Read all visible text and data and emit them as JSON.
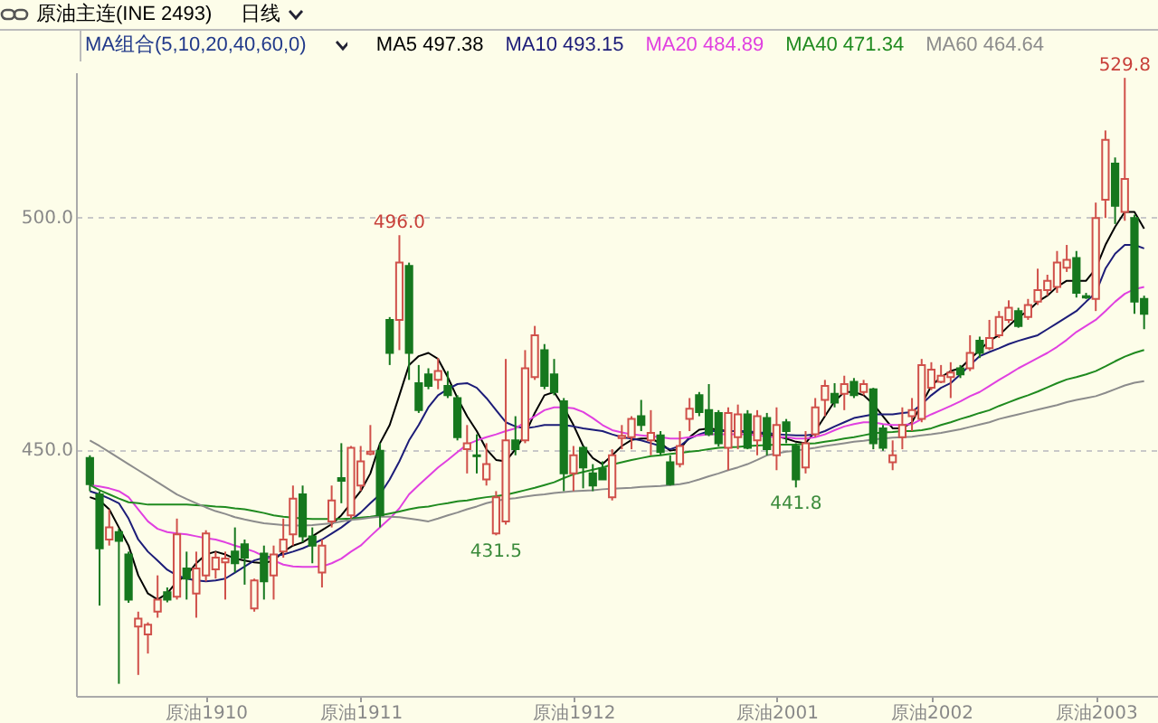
{
  "chart_data": {
    "type": "candlestick",
    "title": "原油主连(INE 2493)",
    "subtitle": "日线",
    "legend_title": "MA组合(5,10,20,40,60,0)",
    "legend": "top right",
    "grid": "y",
    "ylim": [
      397,
      531
    ],
    "yticks": [
      {
        "value": 450,
        "label": "450.0"
      },
      {
        "value": 500,
        "label": "500.0"
      }
    ],
    "categories": [
      null,
      null,
      null,
      null,
      null,
      null,
      null,
      null,
      null,
      null,
      null,
      null,
      "原油1910",
      null,
      null,
      null,
      null,
      null,
      null,
      null,
      null,
      null,
      null,
      null,
      null,
      null,
      null,
      null,
      "原油1911",
      null,
      null,
      null,
      null,
      null,
      null,
      null,
      null,
      null,
      null,
      null,
      null,
      null,
      null,
      null,
      null,
      null,
      null,
      null,
      null,
      null,
      "原油1912",
      null,
      null,
      null,
      null,
      null,
      null,
      null,
      null,
      null,
      null,
      null,
      null,
      null,
      null,
      null,
      null,
      null,
      null,
      null,
      null,
      "原油2001",
      null,
      null,
      null,
      null,
      null,
      null,
      null,
      null,
      null,
      null,
      null,
      null,
      null,
      null,
      null,
      "原油2002",
      null,
      null,
      null,
      null,
      null,
      null,
      null,
      null,
      null,
      null,
      null,
      null,
      null,
      null,
      null,
      null,
      "原油2003",
      null,
      null,
      null,
      null,
      null
    ],
    "ohlc": [
      [
        448.1,
        448.7,
        441,
        442.5
      ],
      [
        440.3,
        441,
        416.4,
        428.7
      ],
      [
        430.6,
        437.1,
        429.3,
        433.2
      ],
      [
        432.2,
        433,
        399.6,
        430.3
      ],
      [
        427.4,
        428,
        417,
        417.7
      ],
      [
        411.9,
        415.1,
        401.5,
        413.6
      ],
      [
        410.2,
        412.8,
        406.1,
        412.3
      ],
      [
        415.1,
        422.9,
        413.8,
        417.7
      ],
      [
        419.3,
        420.3,
        417.1,
        417.7
      ],
      [
        418.3,
        435.1,
        417.7,
        431.7
      ],
      [
        424.4,
        428,
        417.7,
        422.2
      ],
      [
        419,
        428,
        413.8,
        424.4
      ],
      [
        422.9,
        432.6,
        421.6,
        431.9
      ],
      [
        424.2,
        428,
        422.2,
        426.7
      ],
      [
        425.7,
        428,
        417.7,
        426.5
      ],
      [
        428,
        433.2,
        423.5,
        425.5
      ],
      [
        429.6,
        430.6,
        420.9,
        426.7
      ],
      [
        415.8,
        422.2,
        415.1,
        421.8
      ],
      [
        427.6,
        429.3,
        417.7,
        421.6
      ],
      [
        422.9,
        429.3,
        417.7,
        427.4
      ],
      [
        428,
        435.1,
        426.7,
        430.6
      ],
      [
        431.7,
        442.2,
        429.3,
        439.4
      ],
      [
        440.3,
        442.2,
        430,
        431.3
      ],
      [
        431.3,
        433.2,
        425.5,
        429.3
      ],
      [
        423.5,
        430.6,
        420.3,
        429.3
      ],
      [
        434.5,
        442.2,
        433.2,
        439
      ],
      [
        443.8,
        451.3,
        438.4,
        443.2
      ],
      [
        435.8,
        450.7,
        435.1,
        450.3
      ],
      [
        442.2,
        450.7,
        441,
        447.4
      ],
      [
        449,
        455.2,
        448.7,
        449.5
      ],
      [
        449.7,
        451.3,
        433.2,
        435.8
      ],
      [
        477.8,
        478.4,
        468.1,
        470.7
      ],
      [
        477.8,
        496,
        471.3,
        490.1
      ],
      [
        489.4,
        490.1,
        464.9,
        470.7
      ],
      [
        464.2,
        468.1,
        457.8,
        458.4
      ],
      [
        466.1,
        467.4,
        462.9,
        463.6
      ],
      [
        464.9,
        469.6,
        462.9,
        466.8
      ],
      [
        463.6,
        466.8,
        461,
        461.6
      ],
      [
        461,
        461.6,
        451.9,
        452.6
      ],
      [
        450,
        455.2,
        444.8,
        451.3
      ],
      [
        448.7,
        453.2,
        444.8,
        448.5
      ],
      [
        443.5,
        451.3,
        442.2,
        446.8
      ],
      [
        431.9,
        441,
        431.5,
        439.7
      ],
      [
        434.5,
        469.4,
        433.8,
        451.9
      ],
      [
        451.9,
        457.1,
        448.7,
        450
      ],
      [
        451.9,
        471.3,
        451.3,
        467.4
      ],
      [
        465.5,
        476.5,
        464.9,
        474.5
      ],
      [
        471.3,
        472.6,
        462.9,
        463.6
      ],
      [
        466.1,
        469.4,
        461.6,
        462.3
      ],
      [
        460.3,
        461,
        441,
        444.8
      ],
      [
        444.8,
        450.7,
        441,
        448.7
      ],
      [
        450.3,
        450.7,
        441.6,
        446.1
      ],
      [
        444.8,
        446.8,
        441,
        442.2
      ],
      [
        445.9,
        447.4,
        443.5,
        443.5
      ],
      [
        439.7,
        450,
        439,
        448.7
      ],
      [
        452.4,
        455.2,
        450,
        452.9
      ],
      [
        452.6,
        457.1,
        450,
        456.5
      ],
      [
        457.1,
        460.6,
        453.9,
        455.2
      ],
      [
        451.9,
        458.4,
        448.7,
        453.5
      ],
      [
        453,
        453.9,
        448.7,
        449.4
      ],
      [
        447.2,
        448.7,
        442.2,
        442.5
      ],
      [
        446.8,
        453.9,
        446.1,
        450.7
      ],
      [
        456.5,
        461,
        453.9,
        458.7
      ],
      [
        461.6,
        462.3,
        457.1,
        458
      ],
      [
        458.4,
        464,
        452.8,
        453.2
      ],
      [
        457.8,
        458.4,
        450.6,
        451.3
      ],
      [
        450.3,
        459,
        445.5,
        457.8
      ],
      [
        452.6,
        459.6,
        450,
        457.5
      ],
      [
        457.5,
        458.4,
        450,
        450.3
      ],
      [
        451.9,
        458.4,
        448.7,
        457.1
      ],
      [
        456.7,
        457.8,
        448.7,
        450
      ],
      [
        448.7,
        459,
        445.5,
        455.2
      ],
      [
        455.8,
        456.5,
        451.3,
        453.9
      ],
      [
        450.6,
        451.3,
        441.8,
        443.5
      ],
      [
        446.1,
        453.9,
        444.8,
        451.3
      ],
      [
        453.2,
        461,
        452.6,
        459
      ],
      [
        460.6,
        464.9,
        457.1,
        463.6
      ],
      [
        461.9,
        464.2,
        459,
        460
      ],
      [
        461.9,
        465.8,
        458.4,
        464
      ],
      [
        464.5,
        465.3,
        461,
        461.6
      ],
      [
        462.3,
        464.9,
        461.6,
        464
      ],
      [
        462.9,
        463.2,
        450,
        451.3
      ],
      [
        454.5,
        455.2,
        449.7,
        450.3
      ],
      [
        447.2,
        451.9,
        445.5,
        448.7
      ],
      [
        452.6,
        459,
        450,
        455.2
      ],
      [
        457.1,
        461,
        453.9,
        458.4
      ],
      [
        456.5,
        469.4,
        455.8,
        468.1
      ],
      [
        463.2,
        468.7,
        462.7,
        467.1
      ],
      [
        464.5,
        468.1,
        464.2,
        465.8
      ],
      [
        465.5,
        468.7,
        461,
        466.5
      ],
      [
        467.4,
        468.1,
        465.3,
        466.1
      ],
      [
        467.4,
        474.5,
        466.8,
        470.7
      ],
      [
        473.3,
        474.2,
        469.6,
        470.7
      ],
      [
        471.7,
        477.8,
        471.3,
        473.9
      ],
      [
        474.5,
        479.7,
        473.9,
        478.4
      ],
      [
        477.8,
        482,
        477.1,
        480.4
      ],
      [
        479.7,
        480.4,
        476.1,
        476.5
      ],
      [
        478.4,
        482.3,
        477.8,
        481
      ],
      [
        481.7,
        488.8,
        481,
        484.2
      ],
      [
        484.2,
        487.5,
        483,
        486.2
      ],
      [
        484.9,
        492.6,
        483.6,
        490.1
      ],
      [
        489,
        493.9,
        488.1,
        490.7
      ],
      [
        491.1,
        492.6,
        482.6,
        483.6
      ],
      [
        482.9,
        483.6,
        482.3,
        482.6
      ],
      [
        482.3,
        503,
        479.7,
        499.7
      ],
      [
        503.6,
        518.5,
        499.7,
        516.5
      ],
      [
        511.4,
        512.7,
        498.4,
        502.3
      ],
      [
        501,
        529.8,
        499.1,
        508.1
      ],
      [
        499.7,
        500.4,
        479.1,
        481.7
      ],
      [
        482.3,
        483,
        475.8,
        479.1
      ]
    ],
    "series": [
      {
        "name": "MA5 497.38",
        "type": "line",
        "color": "#000000",
        "values": [
          439.7,
          439.0,
          437.1,
          433.2,
          429.3,
          422.9,
          419.0,
          417.7,
          419.0,
          421.6,
          422.9,
          425.5,
          427.4,
          428.0,
          427.4,
          426.5,
          426.1,
          425.7,
          425.5,
          426.1,
          428.0,
          429.3,
          430.0,
          431.3,
          432.6,
          433.9,
          435.8,
          438.4,
          441.0,
          444.8,
          451.3,
          455.2,
          461.6,
          468.1,
          470.0,
          470.7,
          469.4,
          465.5,
          461.0,
          457.1,
          453.9,
          450.0,
          447.7,
          447.4,
          450.0,
          453.2,
          457.8,
          461.6,
          462.3,
          459.0,
          455.2,
          450.7,
          448.1,
          446.8,
          448.7,
          450.7,
          452.0,
          452.3,
          452.3,
          451.3,
          449.7,
          450.0,
          452.6,
          454.2,
          454.5,
          454.2,
          453.9,
          453.9,
          453.6,
          453.5,
          453.2,
          452.8,
          452.3,
          451.6,
          451.3,
          453.9,
          457.1,
          460.3,
          462.3,
          462.3,
          461.6,
          459.7,
          457.1,
          454.5,
          454.5,
          455.8,
          459.7,
          463.6,
          465.5,
          466.8,
          467.4,
          469.4,
          471.3,
          473.3,
          474.5,
          476.5,
          478.4,
          479.7,
          481.7,
          483.0,
          484.9,
          486.2,
          486.2,
          486.2,
          488.8,
          493.9,
          497.8,
          501.0,
          501.0,
          497.38
        ]
      },
      {
        "name": "MA10 493.15",
        "type": "line",
        "color": "#1c1c78",
        "values": [
          441.0,
          440.3,
          439.4,
          438.4,
          435.1,
          430.6,
          428.0,
          426.1,
          424.1,
          422.9,
          422.2,
          421.8,
          421.6,
          421.8,
          422.2,
          423.5,
          424.8,
          426.1,
          426.7,
          427.0,
          427.4,
          428.0,
          428.7,
          429.6,
          430.6,
          431.9,
          433.2,
          434.8,
          436.4,
          438.4,
          440.3,
          443.5,
          447.4,
          451.9,
          455.2,
          459.0,
          461.6,
          462.9,
          464.0,
          464.2,
          463.2,
          461.0,
          458.4,
          455.8,
          454.9,
          454.5,
          454.8,
          455.2,
          455.2,
          455.2,
          454.9,
          454.5,
          454.2,
          453.9,
          453.2,
          452.6,
          452.3,
          451.9,
          451.3,
          450.7,
          450.0,
          450.7,
          452.3,
          453.2,
          453.9,
          453.9,
          453.9,
          453.9,
          453.9,
          453.6,
          453.5,
          453.2,
          453.1,
          453.0,
          453.0,
          453.2,
          453.9,
          454.9,
          455.8,
          456.7,
          457.1,
          457.5,
          457.5,
          457.5,
          457.8,
          458.0,
          459.7,
          461.6,
          463.2,
          464.2,
          466.1,
          468.1,
          470.0,
          470.9,
          471.7,
          472.6,
          473.3,
          473.9,
          474.5,
          475.8,
          477.1,
          478.4,
          479.7,
          481.7,
          483.6,
          488.8,
          492.0,
          493.9,
          493.9,
          493.15
        ]
      },
      {
        "name": "MA20 484.89",
        "type": "line",
        "color": "#e040e0",
        "values": [
          442.3,
          442.0,
          441.6,
          441.0,
          439.7,
          437.1,
          434.5,
          432.9,
          432.2,
          431.9,
          431.7,
          431.3,
          430.9,
          430.6,
          430.0,
          429.3,
          428.7,
          428.0,
          427.0,
          426.1,
          425.2,
          424.8,
          424.7,
          424.7,
          424.8,
          425.5,
          426.5,
          428.0,
          429.3,
          431.3,
          433.2,
          435.1,
          437.3,
          440.3,
          442.3,
          444.2,
          446.1,
          447.7,
          449.4,
          451.0,
          451.9,
          452.6,
          453.2,
          453.9,
          454.5,
          455.8,
          457.1,
          458.4,
          459.0,
          459.0,
          458.8,
          458.0,
          456.7,
          455.2,
          454.1,
          453.6,
          453.2,
          453.0,
          452.8,
          452.6,
          452.3,
          452.3,
          452.6,
          453.0,
          453.2,
          453.2,
          453.2,
          453.2,
          453.2,
          453.0,
          452.8,
          452.6,
          452.6,
          452.3,
          452.3,
          452.6,
          453.2,
          454.1,
          454.9,
          455.4,
          455.8,
          455.8,
          455.4,
          455.2,
          455.2,
          455.4,
          456.5,
          457.5,
          458.4,
          459.3,
          460.3,
          461.4,
          462.3,
          463.6,
          464.9,
          466.1,
          467.4,
          468.5,
          469.6,
          470.7,
          472.0,
          473.5,
          475.2,
          476.5,
          477.8,
          479.7,
          481.7,
          483.4,
          484.4,
          484.89
        ]
      },
      {
        "name": "MA40 471.34",
        "type": "line",
        "color": "#1f8a1f",
        "values": [
          442.3,
          441.2,
          440.3,
          439.4,
          438.6,
          438.4,
          438.1,
          438.1,
          438.1,
          438.1,
          438.1,
          438.0,
          437.9,
          437.7,
          437.6,
          437.3,
          437.1,
          436.7,
          436.3,
          435.8,
          435.5,
          435.3,
          435.1,
          435.0,
          435.0,
          435.0,
          435.0,
          435.1,
          435.3,
          435.5,
          435.8,
          436.2,
          436.6,
          437.1,
          437.5,
          437.7,
          438.1,
          438.4,
          438.8,
          439.0,
          439.4,
          439.7,
          439.9,
          440.2,
          440.7,
          441.2,
          441.7,
          442.3,
          442.9,
          443.8,
          444.6,
          445.1,
          445.6,
          446.1,
          446.7,
          447.2,
          447.7,
          448.1,
          448.5,
          448.7,
          449.0,
          449.2,
          449.5,
          449.7,
          450.0,
          450.3,
          450.4,
          450.5,
          450.7,
          450.8,
          450.9,
          451.0,
          451.0,
          451.0,
          451.2,
          451.3,
          451.6,
          451.9,
          452.3,
          452.6,
          453.0,
          453.4,
          453.6,
          453.7,
          453.9,
          453.9,
          454.1,
          454.5,
          455.2,
          455.8,
          456.5,
          457.1,
          457.8,
          458.4,
          459.3,
          460.1,
          460.9,
          461.6,
          462.4,
          463.3,
          464.2,
          465.0,
          465.5,
          466.1,
          466.8,
          467.8,
          468.9,
          469.9,
          470.7,
          471.34
        ]
      },
      {
        "name": "MA60 464.64",
        "type": "line",
        "color": "#8c8c8c",
        "values": [
          451.9,
          450.7,
          449.4,
          448.1,
          446.8,
          445.5,
          444.2,
          442.9,
          441.6,
          440.3,
          439.3,
          438.4,
          437.5,
          436.7,
          436.1,
          435.4,
          434.9,
          434.5,
          434.1,
          433.9,
          433.7,
          433.6,
          433.6,
          433.7,
          433.9,
          434.1,
          434.5,
          434.8,
          435.0,
          435.3,
          435.5,
          435.5,
          435.4,
          435.1,
          434.8,
          434.5,
          435.1,
          435.8,
          436.4,
          437.1,
          437.7,
          438.4,
          438.9,
          439.3,
          439.5,
          439.8,
          440.1,
          440.3,
          440.6,
          440.8,
          441.0,
          441.1,
          441.2,
          441.4,
          441.5,
          441.6,
          441.7,
          441.9,
          442.0,
          442.1,
          442.3,
          442.5,
          442.9,
          443.5,
          444.2,
          444.8,
          445.5,
          446.1,
          446.8,
          447.7,
          448.7,
          449.1,
          449.5,
          449.7,
          450.0,
          450.3,
          450.7,
          451.0,
          451.3,
          451.6,
          451.8,
          452.1,
          452.3,
          452.5,
          452.6,
          452.7,
          453.0,
          453.2,
          453.5,
          453.9,
          454.3,
          454.8,
          455.3,
          455.8,
          456.5,
          457.0,
          457.5,
          458.0,
          458.5,
          459.0,
          459.5,
          460.1,
          460.6,
          461.0,
          461.4,
          462.1,
          462.9,
          463.7,
          464.3,
          464.64
        ]
      }
    ],
    "annotations": [
      {
        "text": "496.0",
        "y": 496
      },
      {
        "text": "431.5",
        "y": 431.5
      },
      {
        "text": "441.8",
        "y": 441.8
      },
      {
        "text": "529.8",
        "y": 529.8
      }
    ]
  }
}
